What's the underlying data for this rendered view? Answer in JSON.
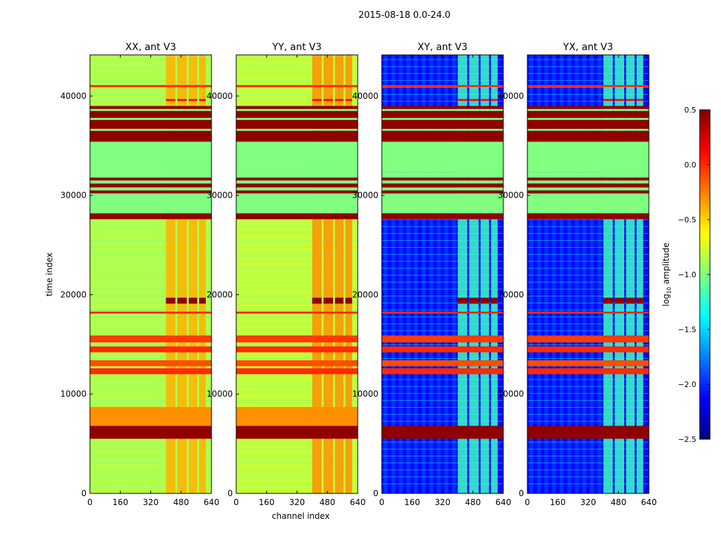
{
  "chart_data": {
    "type": "heatmap",
    "suptitle": "2015-08-18 0.0-24.0",
    "xlabel": "channel index",
    "ylabel": "time index",
    "xlim": [
      0,
      640
    ],
    "ylim": [
      0,
      44140
    ],
    "xticks": [
      "0",
      "160",
      "320",
      "480",
      "640"
    ],
    "xtick_values": [
      0,
      160,
      320,
      480,
      640
    ],
    "yticks": [
      "0",
      "10000",
      "20000",
      "30000",
      "40000"
    ],
    "ytick_values": [
      0,
      10000,
      20000,
      30000,
      40000
    ],
    "colorbar": {
      "label": "log10 amplitude",
      "label_main": "log",
      "label_sub": "10",
      "label_rest": " amplitude",
      "range": [
        -2.5,
        0.5
      ],
      "ticks": [
        "0.5",
        "0.0",
        "−0.5",
        "−1.0",
        "−1.5",
        "−2.0",
        "−2.5"
      ],
      "tick_values": [
        0.5,
        0.0,
        -0.5,
        -1.0,
        -1.5,
        -2.0,
        -2.5
      ],
      "colormap": "jet"
    },
    "panels": [
      {
        "title": "XX, ant V3",
        "kind": "auto",
        "base": -0.85,
        "block": -0.4
      },
      {
        "title": "YY, ant V3",
        "kind": "auto",
        "base": -0.8,
        "block": -0.3
      },
      {
        "title": "XY, ant V3",
        "kind": "cross",
        "base": -2.1,
        "block": -1.2
      },
      {
        "title": "YX, ant V3",
        "kind": "cross",
        "base": -2.1,
        "block": -1.2
      }
    ],
    "channel_blocks": [
      [
        400,
        450
      ],
      [
        460,
        510
      ],
      [
        520,
        565
      ],
      [
        575,
        610
      ]
    ],
    "time_bands": [
      {
        "from": 5500,
        "to": 6800,
        "value": 0.45
      },
      {
        "from": 6800,
        "to": 8700,
        "value": -0.3,
        "auto_only": true
      },
      {
        "from": 12000,
        "to": 12600,
        "value": 0.0
      },
      {
        "from": 12800,
        "to": 13400,
        "value": -0.1
      },
      {
        "from": 14200,
        "to": 14800,
        "value": 0.0
      },
      {
        "from": 15200,
        "to": 15900,
        "value": -0.05
      },
      {
        "from": 18100,
        "to": 18300,
        "value": 0.0
      },
      {
        "from": 19100,
        "to": 19700,
        "value": 0.45,
        "blocks_only": true
      },
      {
        "from": 27600,
        "to": 28200,
        "value": 0.45
      },
      {
        "from": 28200,
        "to": 30200,
        "value": -1.0
      },
      {
        "from": 30200,
        "to": 30500,
        "value": 0.45
      },
      {
        "from": 30500,
        "to": 30800,
        "value": -1.0
      },
      {
        "from": 30800,
        "to": 31200,
        "value": 0.45
      },
      {
        "from": 31200,
        "to": 31500,
        "value": -1.0
      },
      {
        "from": 31500,
        "to": 31800,
        "value": 0.45
      },
      {
        "from": 31800,
        "to": 32300,
        "value": -1.0
      },
      {
        "from": 32300,
        "to": 35400,
        "value": -1.0
      },
      {
        "from": 35400,
        "to": 36500,
        "value": 0.45
      },
      {
        "from": 36500,
        "to": 36700,
        "value": -1.0
      },
      {
        "from": 36700,
        "to": 37600,
        "value": 0.45
      },
      {
        "from": 37600,
        "to": 37800,
        "value": -1.0
      },
      {
        "from": 37800,
        "to": 38500,
        "value": 0.45
      },
      {
        "from": 38500,
        "to": 38700,
        "value": -1.0
      },
      {
        "from": 38700,
        "to": 39000,
        "value": 0.45
      },
      {
        "from": 39500,
        "to": 39700,
        "value": 0.1,
        "blocks_only": true
      },
      {
        "from": 40900,
        "to": 41100,
        "value": 0.0
      }
    ],
    "grid": false
  }
}
